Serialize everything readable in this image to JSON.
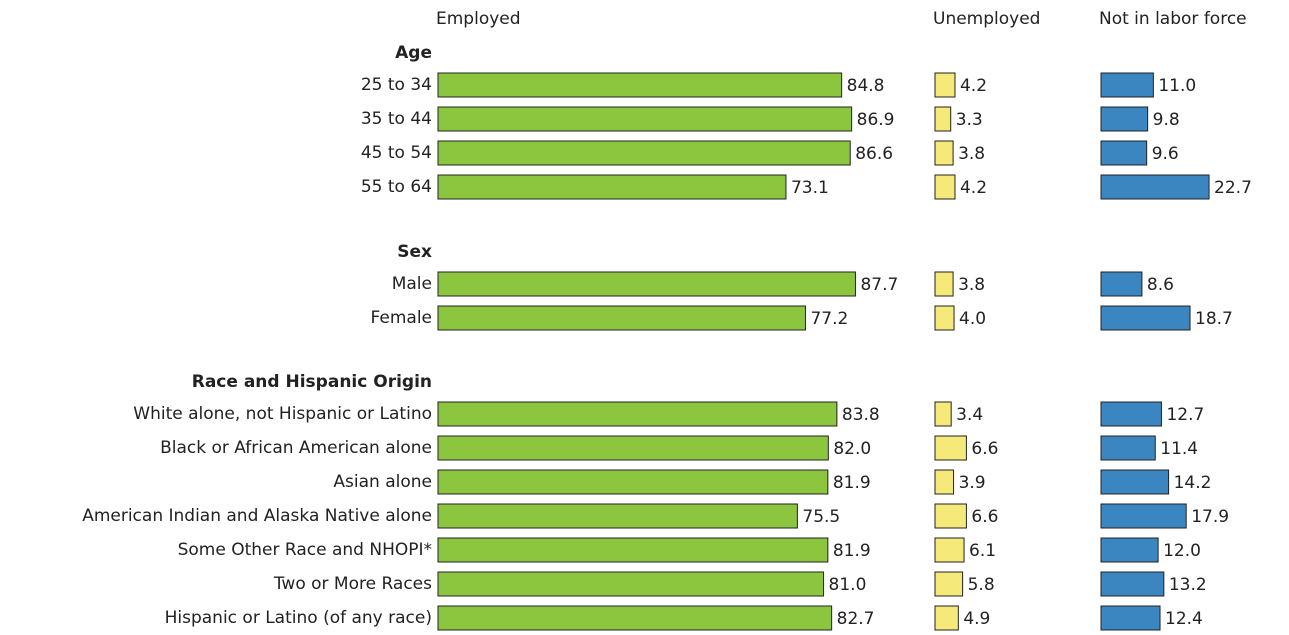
{
  "chart_data": {
    "type": "bar",
    "groups": [
      {
        "name": "Age",
        "categories": [
          "25 to 34",
          "35 to 44",
          "45 to 54",
          "55 to 64"
        ]
      },
      {
        "name": "Sex",
        "categories": [
          "Male",
          "Female"
        ]
      },
      {
        "name": "Race and Hispanic Origin",
        "categories": [
          "White alone, not Hispanic or Latino",
          "Black or African American alone",
          "Asian alone",
          "American Indian and Alaska Native alone",
          "Some Other Race and NHOPI*",
          "Two or More Races",
          "Hispanic or Latino (of any race)"
        ]
      }
    ],
    "series": [
      {
        "name": "Employed",
        "color": "#8cc63f",
        "values": [
          [
            84.8,
            86.9,
            86.6,
            73.1
          ],
          [
            87.7,
            77.2
          ],
          [
            83.8,
            82.0,
            81.9,
            75.5,
            81.9,
            81.0,
            82.7
          ]
        ],
        "value_labels": [
          [
            "84.8",
            "86.9",
            "86.6",
            "73.1"
          ],
          [
            "87.7",
            "77.2"
          ],
          [
            "83.8",
            "82.0",
            "81.9",
            "75.5",
            "81.9",
            "81.0",
            "82.7"
          ]
        ]
      },
      {
        "name": "Unemployed",
        "color": "#f5e97a",
        "values": [
          [
            4.2,
            3.3,
            3.8,
            4.2
          ],
          [
            3.8,
            4.0
          ],
          [
            3.4,
            6.6,
            3.9,
            6.6,
            6.1,
            5.8,
            4.9
          ]
        ],
        "value_labels": [
          [
            "4.2",
            "3.3",
            "3.8",
            "4.2"
          ],
          [
            "3.8",
            "4.0"
          ],
          [
            "3.4",
            "6.6",
            "3.9",
            "6.6",
            "6.1",
            "5.8",
            "4.9"
          ]
        ]
      },
      {
        "name": "Not in labor force",
        "color": "#3b86c1",
        "values": [
          [
            11.0,
            9.8,
            9.6,
            22.7
          ],
          [
            8.6,
            18.7
          ],
          [
            12.7,
            11.4,
            14.2,
            17.9,
            12.0,
            13.2,
            12.4
          ]
        ],
        "value_labels": [
          [
            "11.0",
            "9.8",
            "9.6",
            "22.7"
          ],
          [
            "8.6",
            "18.7"
          ],
          [
            "12.7",
            "11.4",
            "14.2",
            "17.9",
            "12.0",
            "13.2",
            "12.4"
          ]
        ]
      }
    ]
  }
}
